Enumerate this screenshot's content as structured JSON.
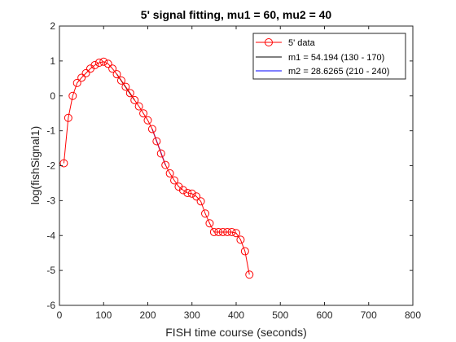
{
  "chart_data": {
    "type": "line",
    "title": "5' signal fitting, mu1 = 60, mu2 = 40",
    "xlabel": "FISH time course (seconds)",
    "ylabel": "log(fishSignal1)",
    "xlim": [
      0,
      800
    ],
    "ylim": [
      -6,
      2
    ],
    "xticks": [
      "0",
      "100",
      "200",
      "300",
      "400",
      "500",
      "600",
      "700",
      "800"
    ],
    "yticks": [
      "-6",
      "-5",
      "-4",
      "-3",
      "-2",
      "-1",
      "0",
      "1",
      "2"
    ],
    "grid": false,
    "legend_position": "top-right",
    "colors": {
      "data": "#ff0000",
      "fit1": "#000000",
      "fit2": "#0000ff"
    },
    "series": [
      {
        "name": "5' data",
        "style": "line-circle-markers",
        "color": "#ff0000",
        "x": [
          10,
          20,
          30,
          40,
          50,
          60,
          70,
          80,
          90,
          100,
          110,
          120,
          130,
          140,
          150,
          160,
          170,
          180,
          190,
          200,
          210,
          220,
          230,
          240,
          250,
          260,
          270,
          280,
          290,
          300,
          310,
          320,
          330,
          340,
          350,
          360,
          370,
          380,
          390,
          400,
          410,
          420,
          430
        ],
        "y": [
          -1.93,
          -0.63,
          0.0,
          0.37,
          0.52,
          0.65,
          0.78,
          0.88,
          0.95,
          0.98,
          0.92,
          0.78,
          0.62,
          0.44,
          0.26,
          0.08,
          -0.12,
          -0.3,
          -0.5,
          -0.7,
          -0.95,
          -1.3,
          -1.65,
          -1.98,
          -2.22,
          -2.42,
          -2.6,
          -2.7,
          -2.78,
          -2.8,
          -2.88,
          -3.02,
          -3.37,
          -3.65,
          -3.9,
          -3.9,
          -3.9,
          -3.9,
          -3.9,
          -3.93,
          -4.12,
          -4.45,
          -5.12
        ]
      },
      {
        "name": "m1 = 54.194 (130 - 170)",
        "style": "line",
        "color": "#000000",
        "x": [
          130,
          170
        ],
        "y": [
          0.62,
          -0.12
        ]
      },
      {
        "name": "m2 = 28.6265 (210 - 240)",
        "style": "line",
        "color": "#0000ff",
        "x": [
          210,
          240
        ],
        "y": [
          -0.95,
          -1.98
        ]
      }
    ]
  }
}
